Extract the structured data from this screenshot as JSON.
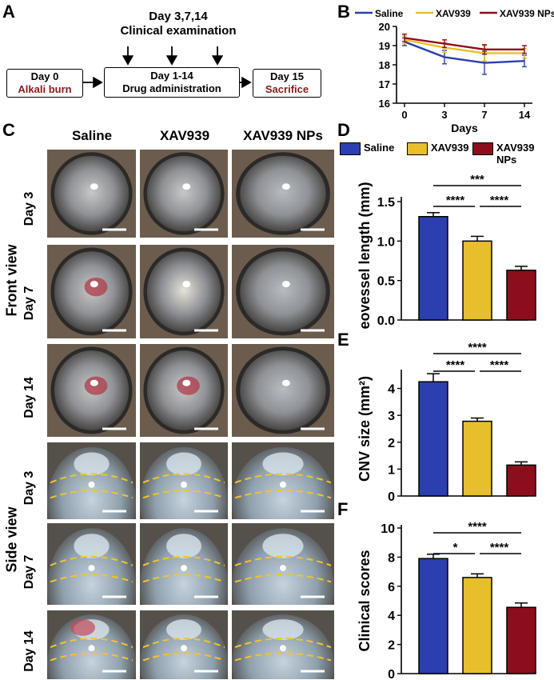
{
  "panels": {
    "a": "A",
    "b": "B",
    "c": "C",
    "d": "D",
    "e": "E",
    "f": "F"
  },
  "flow": {
    "top_line1": "Day 3,7,14",
    "top_line2": "Clinical examination",
    "box1_line1": "Day 0",
    "box1_line2": "Alkali burn",
    "box2_line1": "Day 1-14",
    "box2_line2": "Drug administration",
    "box3_line1": "Day 15",
    "box3_line2": "Sacrifice"
  },
  "colors": {
    "saline": "#2b3fae",
    "xav": "#e7bf2d",
    "nps": "#8c0e1c"
  },
  "photo_grid": {
    "columns": [
      "Saline",
      "XAV939",
      "XAV939 NPs"
    ],
    "rows": [
      "Day 3",
      "Day 7",
      "Day 14",
      "Day 3",
      "Day 7",
      "Day 14"
    ],
    "front_label": "Front view",
    "side_label": "Side view"
  },
  "chart_data": [
    {
      "type": "line",
      "panel": "B",
      "x": [
        0,
        3,
        7,
        14
      ],
      "xlabel": "Days",
      "ylabel": "",
      "ylim": [
        16,
        20
      ],
      "yticks": [
        16,
        17,
        18,
        19,
        20
      ],
      "xticks": [
        0,
        3,
        7,
        14
      ],
      "legend": "top",
      "series": [
        {
          "name": "Saline",
          "values": [
            19.2,
            18.4,
            18.1,
            18.2
          ],
          "err": [
            0.2,
            0.35,
            0.6,
            0.3
          ]
        },
        {
          "name": "XAV939",
          "values": [
            19.3,
            18.9,
            18.6,
            18.6
          ],
          "err": [
            0.2,
            0.25,
            0.4,
            0.25
          ]
        },
        {
          "name": "XAV939 NPs",
          "values": [
            19.4,
            19.1,
            18.8,
            18.8
          ],
          "err": [
            0.2,
            0.2,
            0.25,
            0.2
          ]
        }
      ]
    },
    {
      "type": "bar",
      "panel": "D",
      "categories": [
        "Saline",
        "XAV939",
        "XAV939 NPs"
      ],
      "values": [
        1.31,
        1.0,
        0.63
      ],
      "err": [
        0.05,
        0.06,
        0.05
      ],
      "ylabel": "Neovessel length (mm)",
      "ylim": [
        0,
        1.5
      ],
      "yticks": [
        "0.0",
        "0.5",
        "1.0",
        "1.5"
      ],
      "legend": "top",
      "significance": [
        "***",
        "****",
        "****"
      ]
    },
    {
      "type": "bar",
      "panel": "E",
      "categories": [
        "Saline",
        "XAV939",
        "XAV939 NPs"
      ],
      "values": [
        4.25,
        2.78,
        1.15
      ],
      "err": [
        0.3,
        0.12,
        0.12
      ],
      "ylabel": "CNV size (mm²)",
      "ylim": [
        0,
        5
      ],
      "yticks": [
        "0",
        "1",
        "2",
        "3",
        "4"
      ],
      "significance": [
        "****",
        "****",
        "****"
      ]
    },
    {
      "type": "bar",
      "panel": "F",
      "categories": [
        "Saline",
        "XAV939",
        "XAV939 NPs"
      ],
      "values": [
        7.9,
        6.6,
        4.55
      ],
      "err": [
        0.3,
        0.25,
        0.3
      ],
      "ylabel": "Clinical scores",
      "ylim": [
        0,
        10
      ],
      "yticks": [
        "0",
        "2",
        "4",
        "6",
        "8",
        "10"
      ],
      "significance": [
        "****",
        "*",
        "****"
      ]
    }
  ]
}
